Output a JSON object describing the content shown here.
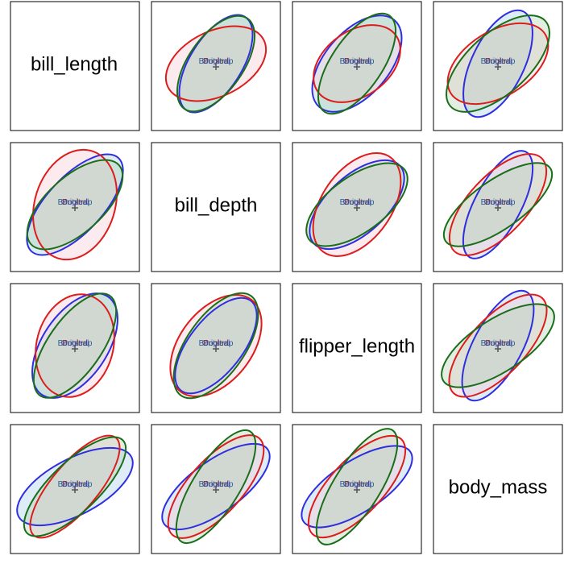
{
  "chart_data": {
    "type": "scatter",
    "title": "",
    "variables": [
      "bill_length",
      "bill_depth",
      "flipper_length",
      "body_mass"
    ],
    "groups": [
      {
        "name": "Original",
        "color": "#2e2ee0",
        "text_color": "#4a4ae0",
        "fill": "#9fc9e6"
      },
      {
        "name": "Pooled",
        "color": "#dd1c1c",
        "text_color": "#8a2a2a",
        "fill": "#f6c6cf"
      },
      {
        "name": "Bootstrap",
        "color": "#1a6e1a",
        "text_color": "#2e5e8e",
        "fill": "#a8cfa8"
      }
    ],
    "panels": [
      {
        "row": 1,
        "col": 2,
        "ellipses": [
          {
            "group": "Original",
            "axis_length": [
              0.95,
              0.45
            ],
            "angle_deg": -58
          },
          {
            "group": "Pooled",
            "axis_length": [
              0.92,
              0.56
            ],
            "angle_deg": -26
          },
          {
            "group": "Bootstrap",
            "axis_length": [
              0.95,
              0.47
            ],
            "angle_deg": -55
          }
        ]
      },
      {
        "row": 1,
        "col": 3,
        "ellipses": [
          {
            "group": "Original",
            "axis_length": [
              0.99,
              0.55
            ],
            "angle_deg": -49
          },
          {
            "group": "Pooled",
            "axis_length": [
              0.83,
              0.56
            ],
            "angle_deg": -36
          },
          {
            "group": "Bootstrap",
            "axis_length": [
              1.0,
              0.44
            ],
            "angle_deg": -56
          }
        ]
      },
      {
        "row": 1,
        "col": 4,
        "ellipses": [
          {
            "group": "Original",
            "axis_length": [
              1.0,
              0.45
            ],
            "angle_deg": -64
          },
          {
            "group": "Pooled",
            "axis_length": [
              0.96,
              0.56
            ],
            "angle_deg": -32
          },
          {
            "group": "Bootstrap",
            "axis_length": [
              1.1,
              0.52
            ],
            "angle_deg": -42
          }
        ]
      },
      {
        "row": 2,
        "col": 1,
        "ellipses": [
          {
            "group": "Original",
            "axis_length": [
              1.1,
              0.48
            ],
            "angle_deg": -47
          },
          {
            "group": "Pooled",
            "axis_length": [
              0.97,
              0.69
            ],
            "angle_deg": -72
          },
          {
            "group": "Bootstrap",
            "axis_length": [
              1.02,
              0.48
            ],
            "angle_deg": -42
          }
        ]
      },
      {
        "row": 2,
        "col": 3,
        "ellipses": [
          {
            "group": "Original",
            "axis_length": [
              1.0,
              0.5
            ],
            "angle_deg": -42
          },
          {
            "group": "Pooled",
            "axis_length": [
              1.0,
              0.6
            ],
            "angle_deg": -55
          },
          {
            "group": "Bootstrap",
            "axis_length": [
              1.02,
              0.48
            ],
            "angle_deg": -36
          }
        ]
      },
      {
        "row": 2,
        "col": 4,
        "ellipses": [
          {
            "group": "Original",
            "axis_length": [
              1.03,
              0.4
            ],
            "angle_deg": -62
          },
          {
            "group": "Pooled",
            "axis_length": [
              1.1,
              0.5
            ],
            "angle_deg": -47
          },
          {
            "group": "Bootstrap",
            "axis_length": [
              1.1,
              0.42
            ],
            "angle_deg": -35
          }
        ]
      },
      {
        "row": 3,
        "col": 1,
        "ellipses": [
          {
            "group": "Original",
            "axis_length": [
              1.02,
              0.56
            ],
            "angle_deg": -56
          },
          {
            "group": "Pooled",
            "axis_length": [
              0.9,
              0.66
            ],
            "angle_deg": -75
          },
          {
            "group": "Bootstrap",
            "axis_length": [
              1.05,
              0.46
            ],
            "angle_deg": -55
          }
        ]
      },
      {
        "row": 3,
        "col": 2,
        "ellipses": [
          {
            "group": "Original",
            "axis_length": [
              0.98,
              0.46
            ],
            "angle_deg": -52
          },
          {
            "group": "Pooled",
            "axis_length": [
              1.0,
              0.62
            ],
            "angle_deg": -52
          },
          {
            "group": "Bootstrap",
            "axis_length": [
              1.05,
              0.5
            ],
            "angle_deg": -55
          }
        ]
      },
      {
        "row": 3,
        "col": 4,
        "ellipses": [
          {
            "group": "Original",
            "axis_length": [
              1.05,
              0.42
            ],
            "angle_deg": -62
          },
          {
            "group": "Pooled",
            "axis_length": [
              1.12,
              0.48
            ],
            "angle_deg": -47
          },
          {
            "group": "Bootstrap",
            "axis_length": [
              1.12,
              0.45
            ],
            "angle_deg": -33
          }
        ]
      },
      {
        "row": 4,
        "col": 1,
        "ellipses": [
          {
            "group": "Original",
            "axis_length": [
              1.1,
              0.48
            ],
            "angle_deg": -28
          },
          {
            "group": "Pooled",
            "axis_length": [
              1.1,
              0.4
            ],
            "angle_deg": -50
          },
          {
            "group": "Bootstrap",
            "axis_length": [
              1.15,
              0.42
            ],
            "angle_deg": -44
          }
        ]
      },
      {
        "row": 4,
        "col": 2,
        "ellipses": [
          {
            "group": "Original",
            "axis_length": [
              1.1,
              0.44
            ],
            "angle_deg": -36
          },
          {
            "group": "Pooled",
            "axis_length": [
              1.12,
              0.46
            ],
            "angle_deg": -48
          },
          {
            "group": "Bootstrap",
            "axis_length": [
              1.12,
              0.4
            ],
            "angle_deg": -58
          }
        ]
      },
      {
        "row": 4,
        "col": 3,
        "ellipses": [
          {
            "group": "Original",
            "axis_length": [
              1.1,
              0.44
            ],
            "angle_deg": -33
          },
          {
            "group": "Pooled",
            "axis_length": [
              1.12,
              0.46
            ],
            "angle_deg": -47
          },
          {
            "group": "Bootstrap",
            "axis_length": [
              1.15,
              0.4
            ],
            "angle_deg": -58
          }
        ]
      }
    ]
  }
}
